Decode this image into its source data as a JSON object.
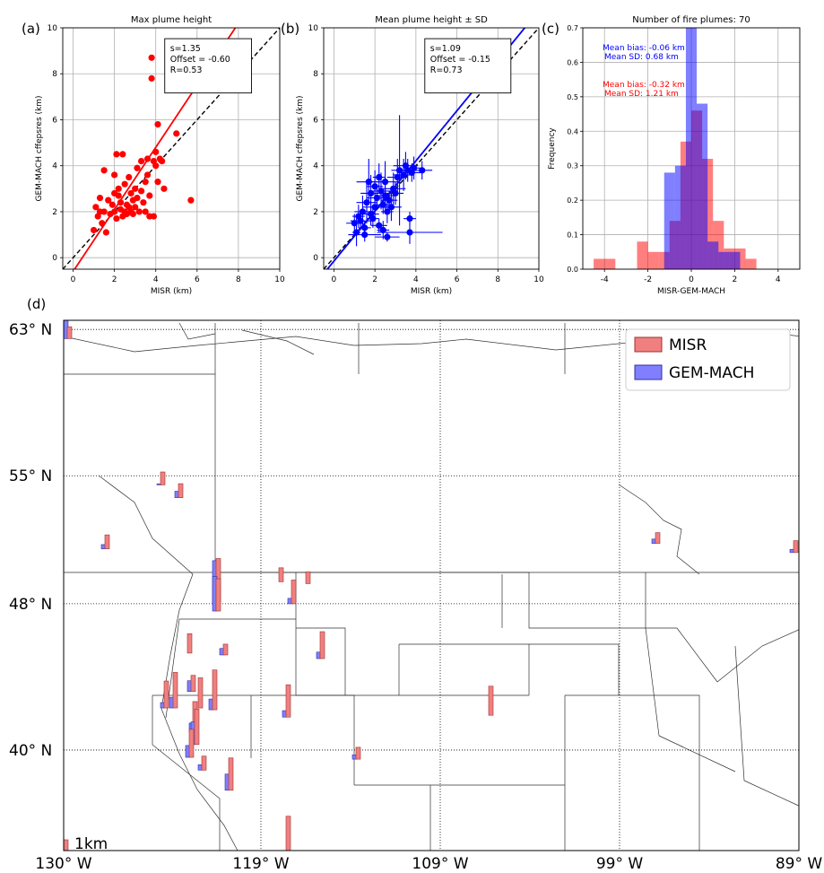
{
  "chart_data": [
    {
      "panel": "(a)",
      "type": "scatter",
      "title": "Max plume height",
      "xlabel": "MISR (km)",
      "ylabel": "GEM-MACH cffepsres (km)",
      "xlim": [
        -0.5,
        10
      ],
      "ylim": [
        -0.5,
        10
      ],
      "xticks": [
        0,
        2,
        4,
        6,
        8,
        10
      ],
      "yticks": [
        0,
        2,
        4,
        6,
        8,
        10
      ],
      "grid": true,
      "stats": [
        "s=1.35",
        "Offset = -0.60",
        "R=0.53"
      ],
      "fit": {
        "slope": 1.35,
        "offset": -0.6
      },
      "one_to_one_line": true,
      "color": "#ff0000",
      "points": [
        [
          1.0,
          1.2
        ],
        [
          1.1,
          2.2
        ],
        [
          1.2,
          1.8
        ],
        [
          1.3,
          2.6
        ],
        [
          1.4,
          1.5
        ],
        [
          1.5,
          3.8
        ],
        [
          1.5,
          2.0
        ],
        [
          1.6,
          1.1
        ],
        [
          1.7,
          2.5
        ],
        [
          1.8,
          1.9
        ],
        [
          1.9,
          2.3
        ],
        [
          2.0,
          2.0
        ],
        [
          2.0,
          3.6
        ],
        [
          2.1,
          4.5
        ],
        [
          2.1,
          1.7
        ],
        [
          2.2,
          2.7
        ],
        [
          2.2,
          3.0
        ],
        [
          2.3,
          2.1
        ],
        [
          2.3,
          2.4
        ],
        [
          2.4,
          4.5
        ],
        [
          2.4,
          1.8
        ],
        [
          2.5,
          3.2
        ],
        [
          2.5,
          2.0
        ],
        [
          2.6,
          2.3
        ],
        [
          2.6,
          1.9
        ],
        [
          2.7,
          3.5
        ],
        [
          2.7,
          2.2
        ],
        [
          2.8,
          2.8
        ],
        [
          2.8,
          2.0
        ],
        [
          2.9,
          2.5
        ],
        [
          2.9,
          1.9
        ],
        [
          3.0,
          3.0
        ],
        [
          3.0,
          2.2
        ],
        [
          3.1,
          2.6
        ],
        [
          3.1,
          3.9
        ],
        [
          3.2,
          2.0
        ],
        [
          3.3,
          4.2
        ],
        [
          3.3,
          2.9
        ],
        [
          3.4,
          2.4
        ],
        [
          3.5,
          3.3
        ],
        [
          3.5,
          2.0
        ],
        [
          3.6,
          4.3
        ],
        [
          3.6,
          3.6
        ],
        [
          3.7,
          2.7
        ],
        [
          3.7,
          1.8
        ],
        [
          3.8,
          8.7
        ],
        [
          3.8,
          7.8
        ],
        [
          3.9,
          4.2
        ],
        [
          3.9,
          1.8
        ],
        [
          4.0,
          4.0
        ],
        [
          4.0,
          4.6
        ],
        [
          4.1,
          5.8
        ],
        [
          4.1,
          3.3
        ],
        [
          4.2,
          4.3
        ],
        [
          4.3,
          4.2
        ],
        [
          4.4,
          3.0
        ],
        [
          5.0,
          5.4
        ],
        [
          5.7,
          2.5
        ],
        [
          1.3,
          2.0
        ],
        [
          2.0,
          2.8
        ]
      ]
    },
    {
      "panel": "(b)",
      "type": "scatter",
      "title": "Mean plume height ± SD",
      "xlabel": "MISR (km)",
      "ylabel": "GEM-MACH cffepsres (km)",
      "xlim": [
        -0.5,
        10
      ],
      "ylim": [
        -0.5,
        10
      ],
      "xticks": [
        0,
        2,
        4,
        6,
        8,
        10
      ],
      "yticks": [
        0,
        2,
        4,
        6,
        8,
        10
      ],
      "grid": true,
      "stats": [
        "s=1.09",
        "Offset = -0.15",
        "R=0.73"
      ],
      "fit": {
        "slope": 1.09,
        "offset": -0.15
      },
      "one_to_one_line": true,
      "color": "#0000ff",
      "points": [
        [
          1.0,
          1.5,
          0.4,
          0.4
        ],
        [
          1.1,
          1.1,
          0.2,
          0.6
        ],
        [
          1.2,
          1.8,
          0.3,
          0.5
        ],
        [
          1.3,
          1.6,
          0.5,
          0.4
        ],
        [
          1.4,
          2.0,
          0.4,
          0.7
        ],
        [
          1.5,
          1.3,
          0.3,
          0.3
        ],
        [
          1.6,
          2.4,
          0.5,
          0.9
        ],
        [
          1.7,
          3.3,
          0.6,
          1.0
        ],
        [
          1.8,
          1.9,
          0.4,
          0.5
        ],
        [
          1.8,
          2.8,
          0.5,
          0.8
        ],
        [
          1.9,
          1.7,
          0.3,
          0.4
        ],
        [
          2.0,
          2.2,
          0.6,
          0.6
        ],
        [
          2.0,
          3.1,
          0.4,
          0.7
        ],
        [
          2.1,
          2.6,
          0.5,
          0.5
        ],
        [
          2.2,
          3.5,
          0.3,
          0.6
        ],
        [
          2.2,
          1.4,
          0.4,
          0.3
        ],
        [
          2.3,
          2.9,
          0.6,
          0.8
        ],
        [
          2.4,
          2.3,
          0.5,
          0.4
        ],
        [
          2.5,
          2.7,
          0.4,
          0.6
        ],
        [
          2.5,
          3.3,
          0.7,
          0.9
        ],
        [
          2.6,
          2.0,
          0.3,
          0.5
        ],
        [
          2.7,
          2.5,
          0.4,
          0.4
        ],
        [
          2.8,
          2.2,
          0.5,
          0.6
        ],
        [
          2.9,
          3.0,
          0.6,
          0.7
        ],
        [
          3.0,
          2.8,
          0.4,
          0.5
        ],
        [
          3.1,
          3.5,
          0.5,
          0.8
        ],
        [
          3.2,
          3.8,
          0.4,
          2.4
        ],
        [
          3.4,
          3.6,
          0.5,
          0.7
        ],
        [
          3.5,
          4.0,
          0.6,
          0.6
        ],
        [
          3.6,
          3.8,
          0.3,
          0.5
        ],
        [
          3.8,
          3.7,
          0.5,
          0.4
        ],
        [
          3.9,
          3.9,
          0.4,
          0.5
        ],
        [
          4.3,
          3.8,
          0.5,
          0.4
        ],
        [
          3.7,
          1.1,
          1.6,
          0.5
        ],
        [
          3.7,
          1.7,
          0.3,
          0.3
        ],
        [
          2.6,
          0.9,
          0.6,
          0.2
        ],
        [
          1.5,
          1.0,
          0.8,
          0.3
        ],
        [
          2.4,
          1.2,
          0.3,
          0.4
        ]
      ]
    },
    {
      "panel": "(c)",
      "type": "histogram",
      "title": "Number of fire plumes: 70",
      "xlabel": "MISR-GEM-MACH",
      "ylabel": "Frequency",
      "xlim": [
        -5,
        5
      ],
      "ylim": [
        0,
        0.7
      ],
      "xticks": [
        -4,
        -2,
        0,
        2,
        4
      ],
      "yticks": [
        0.0,
        0.1,
        0.2,
        0.3,
        0.4,
        0.5,
        0.6,
        0.7
      ],
      "grid": true,
      "series": [
        {
          "name": "MISR",
          "label_lines": [
            "Mean bias: -0.32 km",
            "Mean SD: 1.21 km"
          ],
          "color": "#ff0000",
          "bins": [
            [
              -4.5,
              -3.5,
              0.03
            ],
            [
              -2.5,
              -2.0,
              0.08
            ],
            [
              -2.0,
              -1.5,
              0.05
            ],
            [
              -1.5,
              -1.0,
              0.05
            ],
            [
              -1.0,
              -0.5,
              0.14
            ],
            [
              -0.5,
              0.0,
              0.37
            ],
            [
              0.0,
              0.5,
              0.46
            ],
            [
              0.5,
              1.0,
              0.32
            ],
            [
              1.0,
              1.5,
              0.14
            ],
            [
              1.5,
              2.0,
              0.06
            ],
            [
              2.0,
              2.5,
              0.06
            ],
            [
              2.5,
              3.0,
              0.03
            ]
          ]
        },
        {
          "name": "GEM-MACH",
          "label_lines": [
            "Mean bias: -0.06 km",
            "Mean SD: 0.68 km"
          ],
          "color": "#0000ff",
          "bins": [
            [
              -1.25,
              -0.75,
              0.28
            ],
            [
              -0.75,
              -0.25,
              0.3
            ],
            [
              -0.25,
              0.25,
              0.7
            ],
            [
              0.25,
              0.75,
              0.48
            ],
            [
              0.75,
              1.25,
              0.08
            ],
            [
              1.25,
              1.75,
              0.05
            ],
            [
              1.75,
              2.25,
              0.05
            ]
          ]
        }
      ]
    },
    {
      "panel": "(d)",
      "type": "bar",
      "description_legend": [
        "MISR",
        "GEM-MACH"
      ],
      "lat_labels": [
        "63° N",
        "55° N",
        "48° N",
        "40° N"
      ],
      "lon_labels": [
        "130° W",
        "119° W",
        "109° W",
        "99° W",
        "89° W"
      ],
      "lon_range": [
        -130,
        -89
      ],
      "lat_range": [
        34.5,
        63.5
      ],
      "scale_label": "1km",
      "colors": {
        "misr": "#f08080",
        "gem": "#7f7fff"
      },
      "plumes": [
        {
          "lon": -129.8,
          "lat": 62.5,
          "misr": 1.1,
          "gem": 4.0
        },
        {
          "lon": -124.6,
          "lat": 54.5,
          "misr": 1.2,
          "gem": 0.1
        },
        {
          "lon": -123.6,
          "lat": 53.8,
          "misr": 1.3,
          "gem": 0.6
        },
        {
          "lon": -127.7,
          "lat": 51.0,
          "misr": 1.3,
          "gem": 0.4
        },
        {
          "lon": -121.5,
          "lat": 48.0,
          "misr": 4.2,
          "gem": 4.0
        },
        {
          "lon": -121.5,
          "lat": 47.6,
          "misr": 3.0,
          "gem": 3.2
        },
        {
          "lon": -118.0,
          "lat": 49.2,
          "misr": 1.3,
          "gem": 0.0
        },
        {
          "lon": -116.5,
          "lat": 49.1,
          "misr": 1.1,
          "gem": 0.0
        },
        {
          "lon": -117.3,
          "lat": 48.0,
          "misr": 2.2,
          "gem": 0.5
        },
        {
          "lon": -115.7,
          "lat": 45.0,
          "misr": 2.5,
          "gem": 0.6
        },
        {
          "lon": -123.1,
          "lat": 45.3,
          "misr": 1.8,
          "gem": 0.0
        },
        {
          "lon": -121.1,
          "lat": 45.2,
          "misr": 1.0,
          "gem": 0.6
        },
        {
          "lon": -121.7,
          "lat": 42.2,
          "misr": 3.7,
          "gem": 1.0
        },
        {
          "lon": -124.4,
          "lat": 42.3,
          "misr": 2.5,
          "gem": 0.5
        },
        {
          "lon": -123.9,
          "lat": 42.3,
          "misr": 3.3,
          "gem": 1.0
        },
        {
          "lon": -122.9,
          "lat": 43.2,
          "misr": 1.5,
          "gem": 1.0
        },
        {
          "lon": -122.5,
          "lat": 42.3,
          "misr": 2.8,
          "gem": 0.0
        },
        {
          "lon": -122.8,
          "lat": 41.0,
          "misr": 2.8,
          "gem": 0.8
        },
        {
          "lon": -122.7,
          "lat": 40.3,
          "misr": 3.3,
          "gem": 2.1
        },
        {
          "lon": -123.0,
          "lat": 39.6,
          "misr": 2.6,
          "gem": 1.1
        },
        {
          "lon": -122.3,
          "lat": 38.9,
          "misr": 1.3,
          "gem": 0.5
        },
        {
          "lon": -120.8,
          "lat": 37.8,
          "misr": 3.0,
          "gem": 1.5
        },
        {
          "lon": -117.6,
          "lat": 41.8,
          "misr": 3.0,
          "gem": 0.6
        },
        {
          "lon": -113.7,
          "lat": 39.5,
          "misr": 1.1,
          "gem": 0.4
        },
        {
          "lon": -106.3,
          "lat": 41.9,
          "misr": 2.7,
          "gem": 0.0
        },
        {
          "lon": -117.6,
          "lat": 34.2,
          "misr": 3.7,
          "gem": 0.0
        },
        {
          "lon": -97.0,
          "lat": 51.3,
          "misr": 1.0,
          "gem": 0.4
        },
        {
          "lon": -89.3,
          "lat": 50.8,
          "misr": 1.1,
          "gem": 0.3
        },
        {
          "lon": -130.0,
          "lat": 34.5,
          "misr": 1.0,
          "gem": 1.0
        }
      ]
    }
  ]
}
